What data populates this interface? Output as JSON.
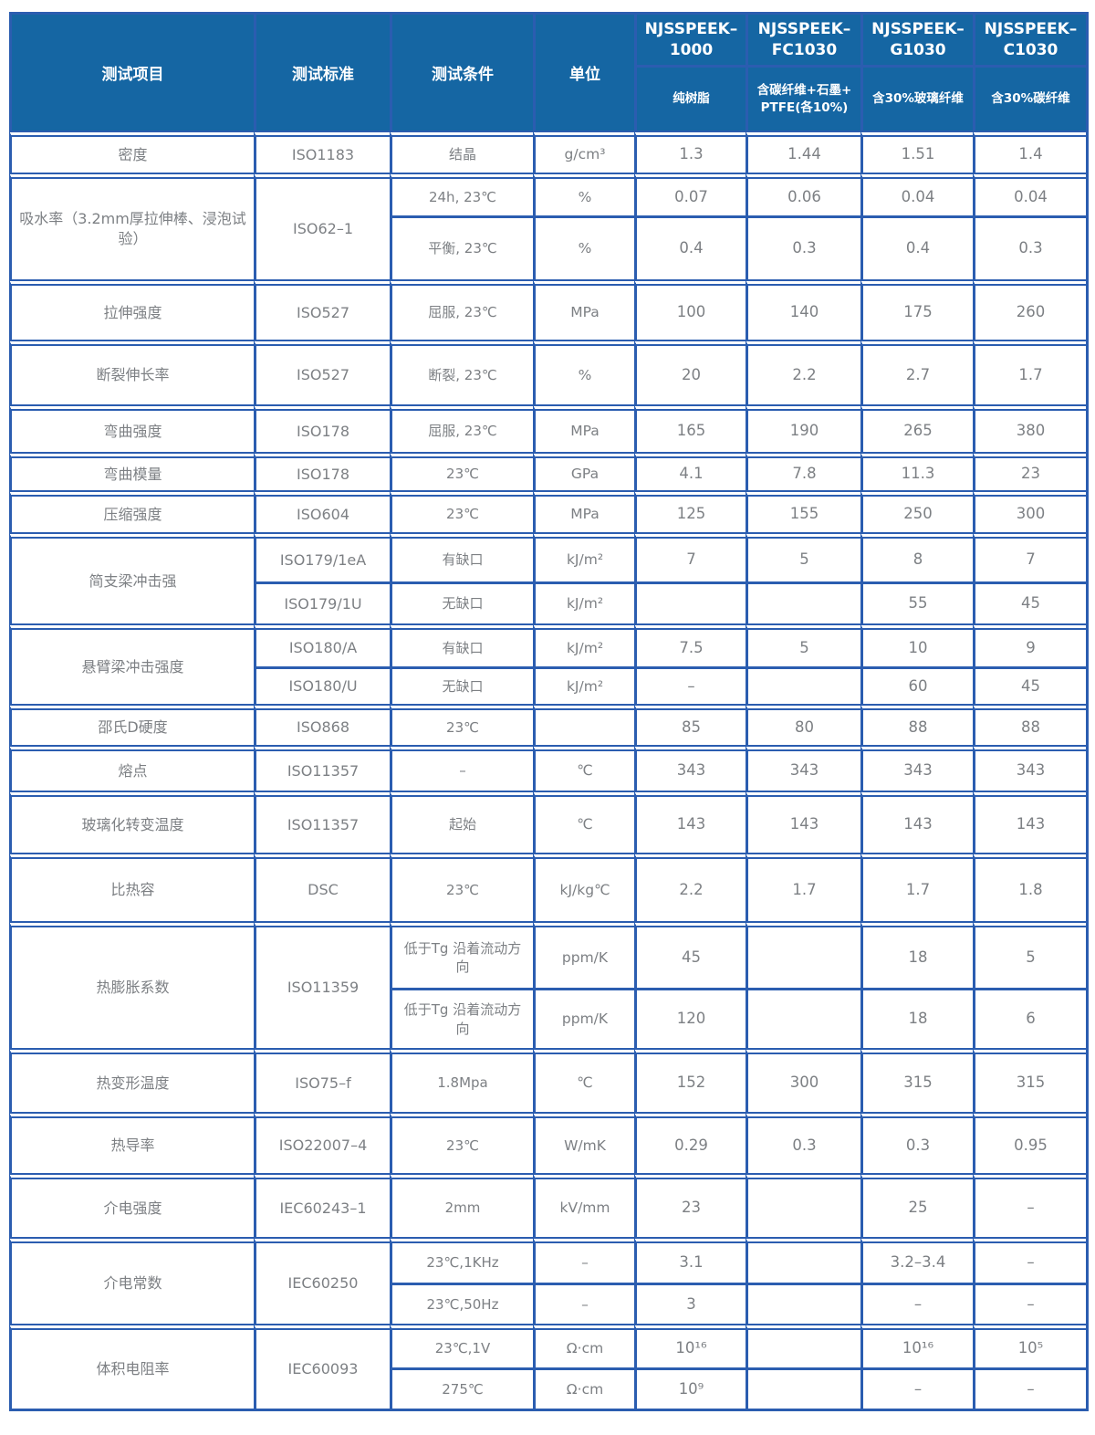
{
  "table": {
    "header": {
      "test_item": "测试项目",
      "test_standard": "测试标准",
      "test_condition": "测试条件",
      "unit": "单位",
      "products": [
        {
          "name": "NJSSPEEK–1000",
          "desc": "纯树脂"
        },
        {
          "name": "NJSSPEEK–FC1030",
          "desc": "含碳纤维+石墨+PTFE(各10%)"
        },
        {
          "name": "NJSSPEEK–G1030",
          "desc": "含30%玻璃纤维"
        },
        {
          "name": "NJSSPEEK–C1030",
          "desc": "含30%碳纤维"
        }
      ]
    },
    "rows": [
      {
        "cells": [
          {
            "k": "item",
            "t": "密度"
          },
          {
            "k": "std",
            "t": "ISO1183"
          },
          {
            "k": "cond",
            "t": "结晶"
          },
          {
            "k": "unit",
            "t": "g/cm³"
          },
          {
            "k": "val",
            "t": "1.3"
          },
          {
            "k": "val",
            "t": "1.44"
          },
          {
            "k": "val",
            "t": "1.51"
          },
          {
            "k": "val",
            "t": "1.4"
          }
        ]
      },
      {
        "cells": [
          {
            "k": "item",
            "t": "吸水率（3.2mm厚拉伸棒、浸泡试验）",
            "rs": 2
          },
          {
            "k": "std",
            "t": "ISO62–1",
            "rs": 2
          },
          {
            "k": "cond",
            "t": "24h, 23℃"
          },
          {
            "k": "unit",
            "t": "%"
          },
          {
            "k": "val",
            "t": "0.07"
          },
          {
            "k": "val",
            "t": "0.06"
          },
          {
            "k": "val",
            "t": "0.04"
          },
          {
            "k": "val",
            "t": "0.04"
          }
        ]
      },
      {
        "cells": [
          {
            "k": "cond",
            "t": "平衡, 23℃"
          },
          {
            "k": "unit",
            "t": "%"
          },
          {
            "k": "val",
            "t": "0.4"
          },
          {
            "k": "val",
            "t": "0.3"
          },
          {
            "k": "val",
            "t": "0.4"
          },
          {
            "k": "val",
            "t": "0.3"
          }
        ]
      },
      {
        "cells": [
          {
            "k": "item",
            "t": "拉伸强度"
          },
          {
            "k": "std",
            "t": "ISO527"
          },
          {
            "k": "cond",
            "t": "屈服, 23℃"
          },
          {
            "k": "unit",
            "t": "MPa"
          },
          {
            "k": "val",
            "t": "100"
          },
          {
            "k": "val",
            "t": "140"
          },
          {
            "k": "val",
            "t": "175"
          },
          {
            "k": "val",
            "t": "260"
          }
        ]
      },
      {
        "cells": [
          {
            "k": "item",
            "t": "断裂伸长率"
          },
          {
            "k": "std",
            "t": "ISO527"
          },
          {
            "k": "cond",
            "t": "断裂, 23℃"
          },
          {
            "k": "unit",
            "t": "%"
          },
          {
            "k": "val",
            "t": "20"
          },
          {
            "k": "val",
            "t": "2.2"
          },
          {
            "k": "val",
            "t": "2.7"
          },
          {
            "k": "val",
            "t": "1.7"
          }
        ]
      },
      {
        "cells": [
          {
            "k": "item",
            "t": "弯曲强度"
          },
          {
            "k": "std",
            "t": "ISO178"
          },
          {
            "k": "cond",
            "t": "屈服, 23℃"
          },
          {
            "k": "unit",
            "t": "MPa"
          },
          {
            "k": "val",
            "t": "165"
          },
          {
            "k": "val",
            "t": "190"
          },
          {
            "k": "val",
            "t": "265"
          },
          {
            "k": "val",
            "t": "380"
          }
        ]
      },
      {
        "cells": [
          {
            "k": "item",
            "t": "弯曲模量"
          },
          {
            "k": "std",
            "t": "ISO178"
          },
          {
            "k": "cond",
            "t": "23℃"
          },
          {
            "k": "unit",
            "t": "GPa"
          },
          {
            "k": "val",
            "t": "4.1"
          },
          {
            "k": "val",
            "t": "7.8"
          },
          {
            "k": "val",
            "t": "11.3"
          },
          {
            "k": "val",
            "t": "23"
          }
        ]
      },
      {
        "cells": [
          {
            "k": "item",
            "t": "压缩强度"
          },
          {
            "k": "std",
            "t": "ISO604"
          },
          {
            "k": "cond",
            "t": "23℃"
          },
          {
            "k": "unit",
            "t": "MPa"
          },
          {
            "k": "val",
            "t": "125"
          },
          {
            "k": "val",
            "t": "155"
          },
          {
            "k": "val",
            "t": "250"
          },
          {
            "k": "val",
            "t": "300"
          }
        ]
      },
      {
        "cells": [
          {
            "k": "item",
            "t": "简支梁冲击强",
            "rs": 2
          },
          {
            "k": "std",
            "t": "ISO179/1eA"
          },
          {
            "k": "cond",
            "t": "有缺口"
          },
          {
            "k": "unit",
            "t": "kJ/m²"
          },
          {
            "k": "val",
            "t": "7"
          },
          {
            "k": "val",
            "t": "5"
          },
          {
            "k": "val",
            "t": "8"
          },
          {
            "k": "val",
            "t": "7"
          }
        ]
      },
      {
        "cells": [
          {
            "k": "std",
            "t": "ISO179/1U"
          },
          {
            "k": "cond",
            "t": "无缺口"
          },
          {
            "k": "unit",
            "t": "kJ/m²"
          },
          {
            "k": "val",
            "t": ""
          },
          {
            "k": "val",
            "t": ""
          },
          {
            "k": "val",
            "t": "55"
          },
          {
            "k": "val",
            "t": "45"
          }
        ]
      },
      {
        "cells": [
          {
            "k": "item",
            "t": "悬臂梁冲击强度",
            "rs": 2
          },
          {
            "k": "std",
            "t": "ISO180/A"
          },
          {
            "k": "cond",
            "t": "有缺口"
          },
          {
            "k": "unit",
            "t": "kJ/m²"
          },
          {
            "k": "val",
            "t": "7.5"
          },
          {
            "k": "val",
            "t": "5"
          },
          {
            "k": "val",
            "t": "10"
          },
          {
            "k": "val",
            "t": "9"
          }
        ]
      },
      {
        "cells": [
          {
            "k": "std",
            "t": "ISO180/U"
          },
          {
            "k": "cond",
            "t": "无缺口"
          },
          {
            "k": "unit",
            "t": "kJ/m²"
          },
          {
            "k": "val",
            "t": "–"
          },
          {
            "k": "val",
            "t": ""
          },
          {
            "k": "val",
            "t": "60"
          },
          {
            "k": "val",
            "t": "45"
          }
        ]
      },
      {
        "cells": [
          {
            "k": "item",
            "t": "邵氏D硬度"
          },
          {
            "k": "std",
            "t": "ISO868"
          },
          {
            "k": "cond",
            "t": "23℃"
          },
          {
            "k": "unit",
            "t": ""
          },
          {
            "k": "val",
            "t": "85"
          },
          {
            "k": "val",
            "t": "80"
          },
          {
            "k": "val",
            "t": "88"
          },
          {
            "k": "val",
            "t": "88"
          }
        ]
      },
      {
        "cells": [
          {
            "k": "item",
            "t": "熔点"
          },
          {
            "k": "std",
            "t": "ISO11357"
          },
          {
            "k": "cond",
            "t": "–"
          },
          {
            "k": "unit",
            "t": "℃"
          },
          {
            "k": "val",
            "t": "343"
          },
          {
            "k": "val",
            "t": "343"
          },
          {
            "k": "val",
            "t": "343"
          },
          {
            "k": "val",
            "t": "343"
          }
        ]
      },
      {
        "cells": [
          {
            "k": "item",
            "t": "玻璃化转变温度"
          },
          {
            "k": "std",
            "t": "ISO11357"
          },
          {
            "k": "cond",
            "t": "起始"
          },
          {
            "k": "unit",
            "t": "℃"
          },
          {
            "k": "val",
            "t": "143"
          },
          {
            "k": "val",
            "t": "143"
          },
          {
            "k": "val",
            "t": "143"
          },
          {
            "k": "val",
            "t": "143"
          }
        ]
      },
      {
        "cells": [
          {
            "k": "item",
            "t": "比热容"
          },
          {
            "k": "std",
            "t": "DSC"
          },
          {
            "k": "cond",
            "t": "23℃"
          },
          {
            "k": "unit",
            "t": "kJ/kg℃"
          },
          {
            "k": "val",
            "t": "2.2"
          },
          {
            "k": "val",
            "t": "1.7"
          },
          {
            "k": "val",
            "t": "1.7"
          },
          {
            "k": "val",
            "t": "1.8"
          }
        ]
      },
      {
        "cells": [
          {
            "k": "item",
            "t": "热膨胀系数",
            "rs": 2
          },
          {
            "k": "std",
            "t": "ISO11359",
            "rs": 2
          },
          {
            "k": "cond",
            "t": "低于Tg 沿着流动方向"
          },
          {
            "k": "unit",
            "t": "ppm/K"
          },
          {
            "k": "val",
            "t": "45"
          },
          {
            "k": "val",
            "t": ""
          },
          {
            "k": "val",
            "t": "18"
          },
          {
            "k": "val",
            "t": "5"
          }
        ]
      },
      {
        "cells": [
          {
            "k": "cond",
            "t": "低于Tg 沿着流动方向"
          },
          {
            "k": "unit",
            "t": "ppm/K"
          },
          {
            "k": "val",
            "t": "120"
          },
          {
            "k": "val",
            "t": ""
          },
          {
            "k": "val",
            "t": "18"
          },
          {
            "k": "val",
            "t": "6"
          }
        ]
      },
      {
        "cells": [
          {
            "k": "item",
            "t": "热变形温度"
          },
          {
            "k": "std",
            "t": "ISO75–f"
          },
          {
            "k": "cond",
            "t": "1.8Mpa"
          },
          {
            "k": "unit",
            "t": "℃"
          },
          {
            "k": "val",
            "t": "152"
          },
          {
            "k": "val",
            "t": "300"
          },
          {
            "k": "val",
            "t": "315"
          },
          {
            "k": "val",
            "t": "315"
          }
        ]
      },
      {
        "cells": [
          {
            "k": "item",
            "t": "热导率"
          },
          {
            "k": "std",
            "t": "ISO22007–4"
          },
          {
            "k": "cond",
            "t": "23℃"
          },
          {
            "k": "unit",
            "t": "W/mK"
          },
          {
            "k": "val",
            "t": "0.29"
          },
          {
            "k": "val",
            "t": "0.3"
          },
          {
            "k": "val",
            "t": "0.3"
          },
          {
            "k": "val",
            "t": "0.95"
          }
        ]
      },
      {
        "cells": [
          {
            "k": "item",
            "t": "介电强度"
          },
          {
            "k": "std",
            "t": "IEC60243–1"
          },
          {
            "k": "cond",
            "t": "2mm"
          },
          {
            "k": "unit",
            "t": "kV/mm"
          },
          {
            "k": "val",
            "t": "23"
          },
          {
            "k": "val",
            "t": ""
          },
          {
            "k": "val",
            "t": "25"
          },
          {
            "k": "val",
            "t": "–"
          }
        ]
      },
      {
        "cells": [
          {
            "k": "item",
            "t": "介电常数",
            "rs": 2
          },
          {
            "k": "std",
            "t": "IEC60250",
            "rs": 2
          },
          {
            "k": "cond",
            "t": "23℃,1KHz"
          },
          {
            "k": "unit",
            "t": "–"
          },
          {
            "k": "val",
            "t": "3.1"
          },
          {
            "k": "val",
            "t": ""
          },
          {
            "k": "val",
            "t": "3.2–3.4"
          },
          {
            "k": "val",
            "t": "–"
          }
        ]
      },
      {
        "cells": [
          {
            "k": "cond",
            "t": "23℃,50Hz"
          },
          {
            "k": "unit",
            "t": "–"
          },
          {
            "k": "val",
            "t": "3"
          },
          {
            "k": "val",
            "t": ""
          },
          {
            "k": "val",
            "t": "–"
          },
          {
            "k": "val",
            "t": "–"
          }
        ]
      },
      {
        "cells": [
          {
            "k": "item",
            "t": "体积电阻率",
            "rs": 2
          },
          {
            "k": "std",
            "t": "IEC60093",
            "rs": 2
          },
          {
            "k": "cond",
            "t": "23℃,1V"
          },
          {
            "k": "unit",
            "t": "Ω·cm"
          },
          {
            "k": "val",
            "t": "10¹⁶"
          },
          {
            "k": "val",
            "t": ""
          },
          {
            "k": "val",
            "t": "10¹⁶"
          },
          {
            "k": "val",
            "t": "10⁵"
          }
        ]
      },
      {
        "cells": [
          {
            "k": "cond",
            "t": "275℃"
          },
          {
            "k": "unit",
            "t": "Ω·cm"
          },
          {
            "k": "val",
            "t": "10⁹"
          },
          {
            "k": "val",
            "t": ""
          },
          {
            "k": "val",
            "t": "–"
          },
          {
            "k": "val",
            "t": "–"
          }
        ]
      }
    ]
  }
}
